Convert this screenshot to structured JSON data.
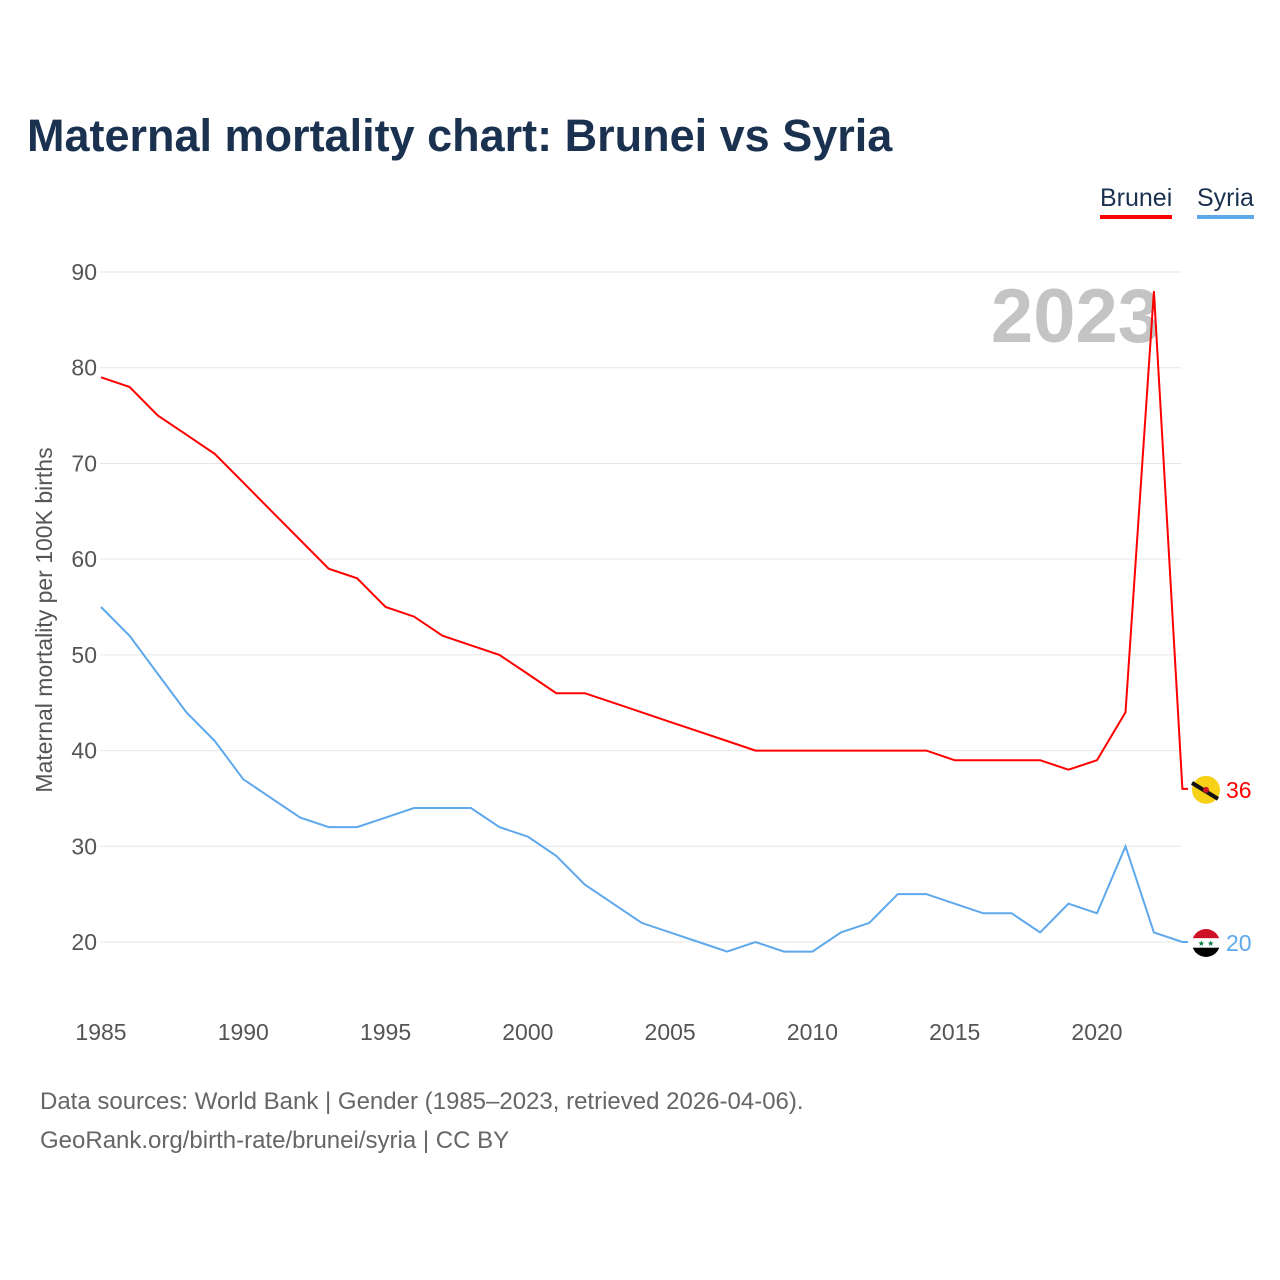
{
  "chart_data": {
    "type": "line",
    "title": "Maternal mortality chart: Brunei vs Syria",
    "xlabel": "",
    "ylabel": "Maternal mortality per 100K births",
    "xlim": [
      1985,
      2023
    ],
    "ylim": [
      14,
      92
    ],
    "yticks": [
      20,
      30,
      40,
      50,
      60,
      70,
      80,
      90
    ],
    "xticks": [
      1985,
      1990,
      1995,
      2000,
      2005,
      2010,
      2015,
      2020
    ],
    "grid": true,
    "legend_position": "top-right",
    "year_label": "2023",
    "x": [
      1985,
      1986,
      1987,
      1988,
      1989,
      1990,
      1991,
      1992,
      1993,
      1994,
      1995,
      1996,
      1997,
      1998,
      1999,
      2000,
      2001,
      2002,
      2003,
      2004,
      2005,
      2006,
      2007,
      2008,
      2009,
      2010,
      2011,
      2012,
      2013,
      2014,
      2015,
      2016,
      2017,
      2018,
      2019,
      2020,
      2021,
      2022,
      2023
    ],
    "series": [
      {
        "name": "Brunei",
        "color": "#ff0000",
        "end_label": "36",
        "values": [
          79,
          78,
          75,
          73,
          71,
          68,
          65,
          62,
          59,
          58,
          55,
          54,
          52,
          51,
          50,
          48,
          46,
          46,
          45,
          44,
          43,
          42,
          41,
          40,
          40,
          40,
          40,
          40,
          40,
          40,
          39,
          39,
          39,
          39,
          38,
          39,
          44,
          88,
          36
        ]
      },
      {
        "name": "Syria",
        "color": "#5ea8ec",
        "end_label": "20",
        "values": [
          55,
          52,
          48,
          44,
          41,
          37,
          35,
          33,
          32,
          32,
          33,
          34,
          34,
          34,
          32,
          31,
          29,
          26,
          24,
          22,
          21,
          20,
          19,
          20,
          19,
          19,
          21,
          22,
          25,
          25,
          24,
          23,
          23,
          21,
          24,
          23,
          30,
          21,
          20
        ]
      }
    ]
  },
  "footer": {
    "line1": "Data sources: World Bank | Gender (1985–2023, retrieved 2026-04-06).",
    "line2": "GeoRank.org/birth-rate/brunei/syria | CC BY"
  }
}
